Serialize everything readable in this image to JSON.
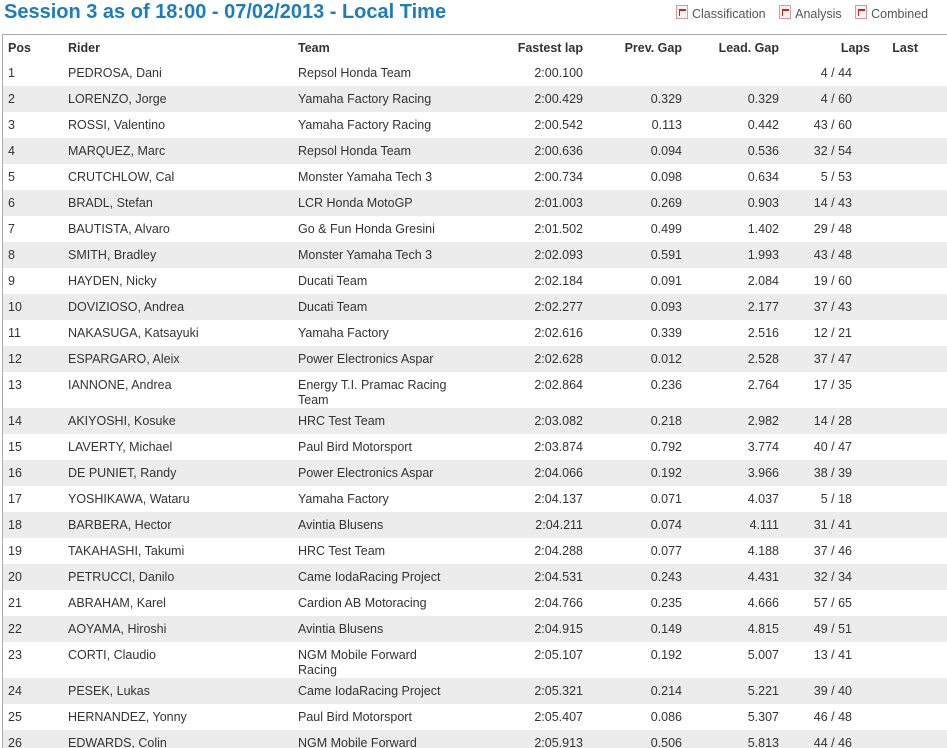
{
  "title": "Session 3 as of 18:00 - 07/02/2013 - Local Time",
  "links": [
    {
      "label": "Classification",
      "icon": "pdf-icon"
    },
    {
      "label": "Analysis",
      "icon": "pdf-icon"
    },
    {
      "label": "Combined"
    }
  ],
  "headers": {
    "pos": "Pos",
    "rider": "Rider",
    "team": "Team",
    "fastest": "Fastest lap",
    "prev": "Prev. Gap",
    "lead": "Lead. Gap",
    "laps": "Laps",
    "last": "Last"
  },
  "rows": [
    {
      "pos": "1",
      "rider": "PEDROSA, Dani",
      "team": "Repsol Honda Team",
      "fastest": "2:00.100",
      "prev": "",
      "lead": "",
      "laps": "4 / 44"
    },
    {
      "pos": "2",
      "rider": "LORENZO, Jorge",
      "team": "Yamaha Factory Racing",
      "fastest": "2:00.429",
      "prev": "0.329",
      "lead": "0.329",
      "laps": "4 / 60"
    },
    {
      "pos": "3",
      "rider": "ROSSI, Valentino",
      "team": "Yamaha Factory Racing",
      "fastest": "2:00.542",
      "prev": "0.113",
      "lead": "0.442",
      "laps": "43 / 60"
    },
    {
      "pos": "4",
      "rider": "MARQUEZ, Marc",
      "team": "Repsol Honda Team",
      "fastest": "2:00.636",
      "prev": "0.094",
      "lead": "0.536",
      "laps": "32 / 54"
    },
    {
      "pos": "5",
      "rider": "CRUTCHLOW, Cal",
      "team": "Monster Yamaha Tech 3",
      "fastest": "2:00.734",
      "prev": "0.098",
      "lead": "0.634",
      "laps": "5 / 53"
    },
    {
      "pos": "6",
      "rider": "BRADL, Stefan",
      "team": "LCR Honda MotoGP",
      "fastest": "2:01.003",
      "prev": "0.269",
      "lead": "0.903",
      "laps": "14 / 43"
    },
    {
      "pos": "7",
      "rider": "BAUTISTA, Alvaro",
      "team": "Go & Fun Honda Gresini",
      "fastest": "2:01.502",
      "prev": "0.499",
      "lead": "1.402",
      "laps": "29 / 48"
    },
    {
      "pos": "8",
      "rider": "SMITH, Bradley",
      "team": "Monster Yamaha Tech 3",
      "fastest": "2:02.093",
      "prev": "0.591",
      "lead": "1.993",
      "laps": "43 / 48"
    },
    {
      "pos": "9",
      "rider": "HAYDEN, Nicky",
      "team": "Ducati Team",
      "fastest": "2:02.184",
      "prev": "0.091",
      "lead": "2.084",
      "laps": "19 / 60"
    },
    {
      "pos": "10",
      "rider": "DOVIZIOSO, Andrea",
      "team": "Ducati Team",
      "fastest": "2:02.277",
      "prev": "0.093",
      "lead": "2.177",
      "laps": "37 / 43"
    },
    {
      "pos": "11",
      "rider": "NAKASUGA, Katsayuki",
      "team": "Yamaha Factory",
      "fastest": "2:02.616",
      "prev": "0.339",
      "lead": "2.516",
      "laps": "12 / 21"
    },
    {
      "pos": "12",
      "rider": "ESPARGARO, Aleix",
      "team": "Power Electronics Aspar",
      "fastest": "2:02.628",
      "prev": "0.012",
      "lead": "2.528",
      "laps": "37 / 47"
    },
    {
      "pos": "13",
      "rider": "IANNONE, Andrea",
      "team": "Energy T.I. Pramac Racing Team",
      "fastest": "2:02.864",
      "prev": "0.236",
      "lead": "2.764",
      "laps": "17 / 35"
    },
    {
      "pos": "14",
      "rider": "AKIYOSHI, Kosuke",
      "team": "HRC Test Team",
      "fastest": "2:03.082",
      "prev": "0.218",
      "lead": "2.982",
      "laps": "14 / 28"
    },
    {
      "pos": "15",
      "rider": "LAVERTY, Michael",
      "team": "Paul Bird Motorsport",
      "fastest": "2:03.874",
      "prev": "0.792",
      "lead": "3.774",
      "laps": "40 / 47"
    },
    {
      "pos": "16",
      "rider": "DE PUNIET, Randy",
      "team": "Power Electronics Aspar",
      "fastest": "2:04.066",
      "prev": "0.192",
      "lead": "3.966",
      "laps": "38 / 39"
    },
    {
      "pos": "17",
      "rider": "YOSHIKAWA, Wataru",
      "team": "Yamaha Factory",
      "fastest": "2:04.137",
      "prev": "0.071",
      "lead": "4.037",
      "laps": "5 / 18"
    },
    {
      "pos": "18",
      "rider": "BARBERA, Hector",
      "team": "Avintia Blusens",
      "fastest": "2:04.211",
      "prev": "0.074",
      "lead": "4.111",
      "laps": "31 / 41"
    },
    {
      "pos": "19",
      "rider": "TAKAHASHI, Takumi",
      "team": "HRC Test Team",
      "fastest": "2:04.288",
      "prev": "0.077",
      "lead": "4.188",
      "laps": "37 / 46"
    },
    {
      "pos": "20",
      "rider": "PETRUCCI, Danilo",
      "team": "Came IodaRacing Project",
      "fastest": "2:04.531",
      "prev": "0.243",
      "lead": "4.431",
      "laps": "32 / 34"
    },
    {
      "pos": "21",
      "rider": "ABRAHAM, Karel",
      "team": "Cardion AB Motoracing",
      "fastest": "2:04.766",
      "prev": "0.235",
      "lead": "4.666",
      "laps": "57 / 65"
    },
    {
      "pos": "22",
      "rider": "AOYAMA, Hiroshi",
      "team": "Avintia Blusens",
      "fastest": "2:04.915",
      "prev": "0.149",
      "lead": "4.815",
      "laps": "49 / 51"
    },
    {
      "pos": "23",
      "rider": "CORTI, Claudio",
      "team": "NGM Mobile Forward Racing",
      "fastest": "2:05.107",
      "prev": "0.192",
      "lead": "5.007",
      "laps": "13 / 41"
    },
    {
      "pos": "24",
      "rider": "PESEK, Lukas",
      "team": "Came IodaRacing Project",
      "fastest": "2:05.321",
      "prev": "0.214",
      "lead": "5.221",
      "laps": "39 / 40"
    },
    {
      "pos": "25",
      "rider": "HERNANDEZ, Yonny",
      "team": "Paul Bird Motorsport",
      "fastest": "2:05.407",
      "prev": "0.086",
      "lead": "5.307",
      "laps": "46 / 48"
    },
    {
      "pos": "26",
      "rider": "EDWARDS, Colin",
      "team": "NGM Mobile Forward Racing",
      "fastest": "2:05.913",
      "prev": "0.506",
      "lead": "5.813",
      "laps": "44 / 46"
    }
  ]
}
